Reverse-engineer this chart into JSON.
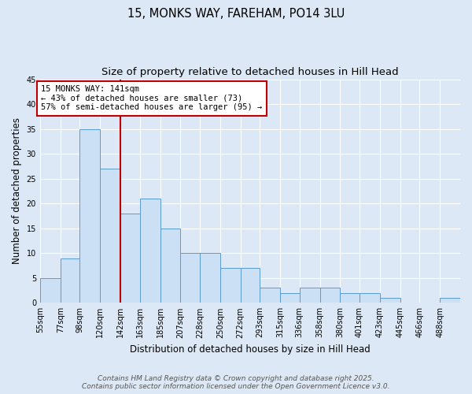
{
  "title_line1": "15, MONKS WAY, FAREHAM, PO14 3LU",
  "title_line2": "Size of property relative to detached houses in Hill Head",
  "xlabel": "Distribution of detached houses by size in Hill Head",
  "ylabel": "Number of detached properties",
  "bin_labels": [
    "55sqm",
    "77sqm",
    "98sqm",
    "120sqm",
    "142sqm",
    "163sqm",
    "185sqm",
    "207sqm",
    "228sqm",
    "250sqm",
    "272sqm",
    "293sqm",
    "315sqm",
    "336sqm",
    "358sqm",
    "380sqm",
    "401sqm",
    "423sqm",
    "445sqm",
    "466sqm",
    "488sqm"
  ],
  "bin_edges": [
    55,
    77,
    98,
    120,
    142,
    163,
    185,
    207,
    228,
    250,
    272,
    293,
    315,
    336,
    358,
    380,
    401,
    423,
    445,
    466,
    488,
    510
  ],
  "values": [
    5,
    9,
    35,
    27,
    18,
    21,
    15,
    10,
    10,
    7,
    7,
    3,
    2,
    3,
    3,
    2,
    2,
    1,
    0,
    0,
    1
  ],
  "bar_facecolor": "#cce0f5",
  "bar_edgecolor": "#5b9bd5",
  "vline_x": 142,
  "vline_color": "#c00000",
  "annotation_text": "15 MONKS WAY: 141sqm\n← 43% of detached houses are smaller (73)\n57% of semi-detached houses are larger (95) →",
  "annotation_boxcolor": "white",
  "annotation_edgecolor": "#c00000",
  "ylim": [
    0,
    45
  ],
  "yticks": [
    0,
    5,
    10,
    15,
    20,
    25,
    30,
    35,
    40,
    45
  ],
  "bg_color": "#dce8f5",
  "plot_bg_color": "#dce8f5",
  "footer_line1": "Contains HM Land Registry data © Crown copyright and database right 2025.",
  "footer_line2": "Contains public sector information licensed under the Open Government Licence v3.0.",
  "title_fontsize": 10.5,
  "subtitle_fontsize": 9.5,
  "tick_fontsize": 7,
  "label_fontsize": 8.5,
  "annotation_fontsize": 7.5,
  "footer_fontsize": 6.5
}
